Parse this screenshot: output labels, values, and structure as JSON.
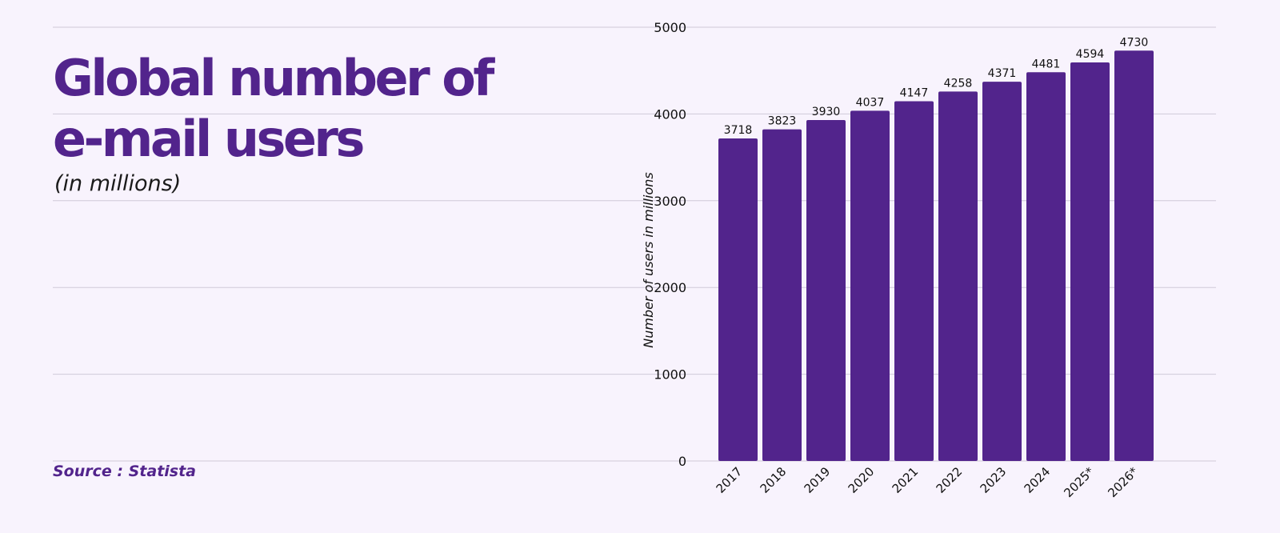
{
  "title_lines": [
    "Global number of",
    "e-mail users"
  ],
  "subtitle": "(in millions)",
  "source": "Source : Statista",
  "colors": {
    "bar": "#52248c",
    "title": "#52248c",
    "grid": "#cfcad8",
    "background": "#f8f3fd"
  },
  "chart_data": {
    "type": "bar",
    "categories": [
      "2017",
      "2018",
      "2019",
      "2020",
      "2021",
      "2022",
      "2023",
      "2024",
      "2025*",
      "2026*"
    ],
    "values": [
      3718,
      3823,
      3930,
      4037,
      4147,
      4258,
      4371,
      4481,
      4594,
      4730
    ],
    "ylabel": "Number of users in millions",
    "ylim": [
      0,
      5000
    ],
    "yticks": [
      0,
      1000,
      2000,
      3000,
      4000,
      5000
    ],
    "grid": true,
    "data_labels": true
  }
}
